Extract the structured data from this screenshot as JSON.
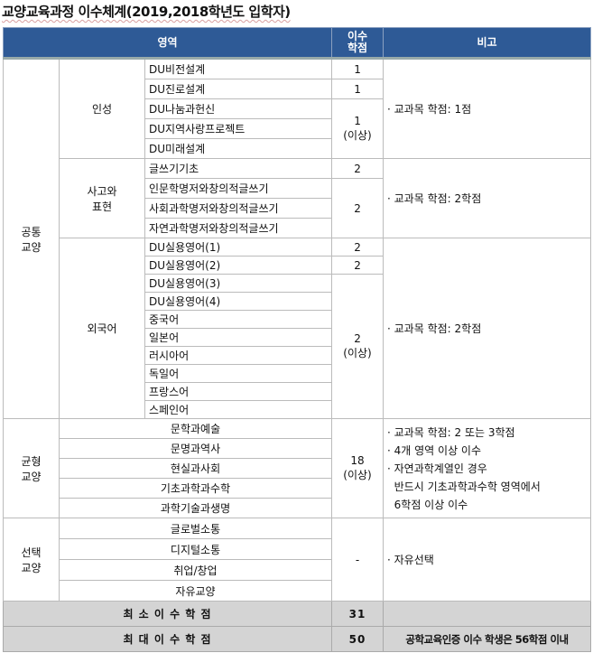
{
  "title": "교양교육과정 이수체계(2019,2018학년도 입학자)",
  "header": {
    "area": "영역",
    "credits": "이수\n학점",
    "note": "비고"
  },
  "common": {
    "label": "공통\n교양",
    "insung": {
      "label": "인성",
      "courses": [
        "DU비전설계",
        "DU진로설계",
        "DU나눔과헌신",
        "DU지역사랑프로젝트",
        "DU미래설계"
      ],
      "credits": [
        "1",
        "1",
        "1\n(이상)"
      ],
      "note": "· 교과목 학점: 1점"
    },
    "thinking": {
      "label": "사고와\n표현",
      "courses": [
        "글쓰기기초",
        "인문학명저와창의적글쓰기",
        "사회과학명저와창의적글쓰기",
        "자연과학명저와창의적글쓰기"
      ],
      "credits": [
        "2",
        "2"
      ],
      "note": "· 교과목 학점: 2학점"
    },
    "foreign": {
      "label": "외국어",
      "courses": [
        "DU실용영어(1)",
        "DU실용영어(2)",
        "DU실용영어(3)",
        "DU실용영어(4)",
        "중국어",
        "일본어",
        "러시아어",
        "독일어",
        "프랑스어",
        "스페인어"
      ],
      "credits": [
        "2",
        "2",
        "2\n(이상)"
      ],
      "note": "· 교과목 학점: 2학점"
    }
  },
  "balanced": {
    "label": "균형\n교양",
    "courses": [
      "문학과예술",
      "문명과역사",
      "현실과사회",
      "기초과학과수학",
      "과학기술과생명"
    ],
    "credits": "18\n(이상)",
    "note": [
      "· 교과목 학점: 2 또는 3학점",
      "· 4개 영역 이상 이수",
      "· 자연과학계열인 경우",
      "  반드시 기초과학과수학 영역에서",
      "  6학점 이상 이수"
    ]
  },
  "elective": {
    "label": "선택\n교양",
    "courses": [
      "글로벌소통",
      "디지털소통",
      "취업/창업",
      "자유교양"
    ],
    "credits": "-",
    "note": "· 자유선택"
  },
  "totals": {
    "min_label": "최 소 이 수 학 점",
    "min_value": "31",
    "max_label": "최 대 이 수 학 점",
    "max_value": "50",
    "max_note": "공학교육인증 이수 학생은 56학점 이내"
  }
}
